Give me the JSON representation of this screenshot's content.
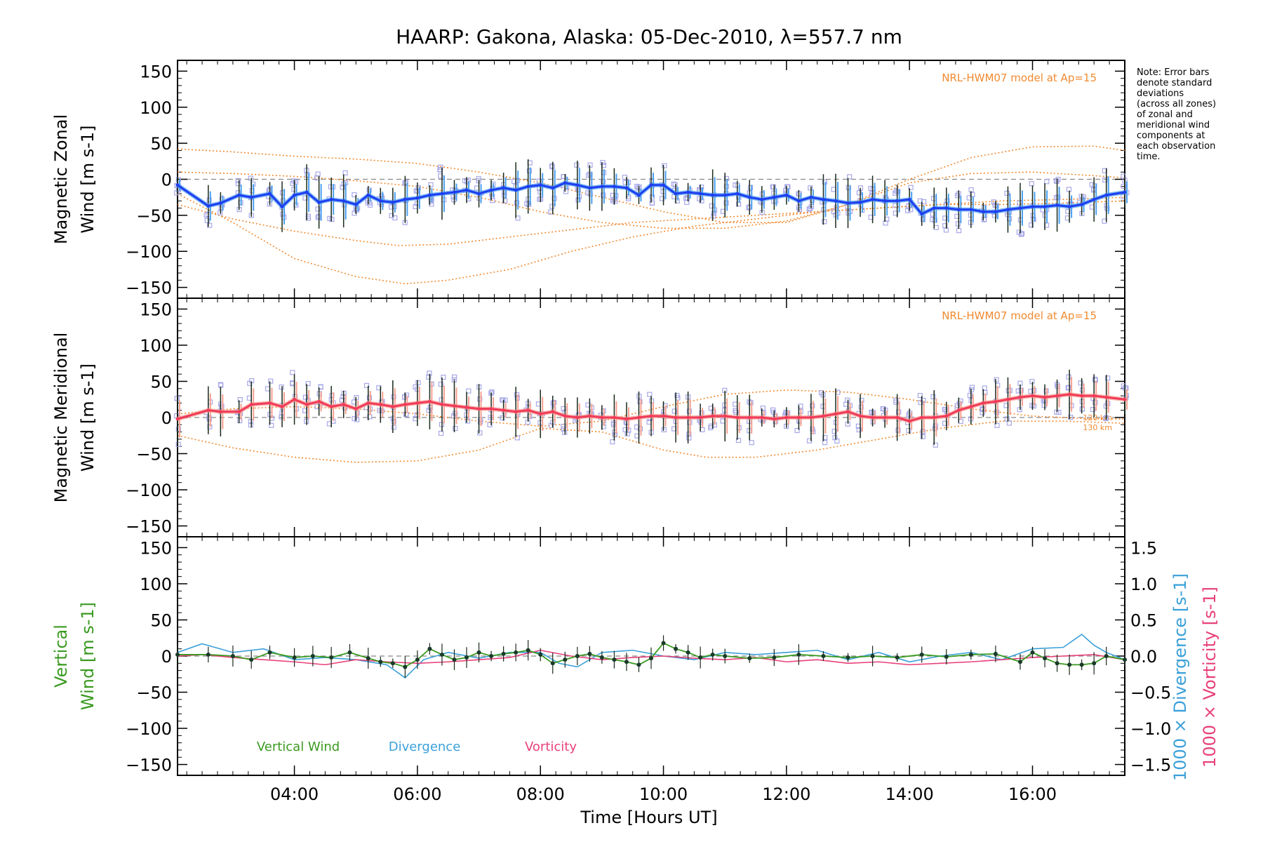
{
  "title": "HAARP: Gakona,  Alaska: 05-Dec-2010, λ=557.7 nm",
  "note_lines": [
    "Note: Error bars",
    "denote standard",
    "deviations",
    "(across all zones)",
    "of zonal and",
    "meridional wind",
    "components at",
    "each observation",
    "time."
  ],
  "colors": {
    "zonal": "#1f3df0",
    "zonal_light": "#4aa0f0",
    "meridional": "#f03a5a",
    "meridional_light": "#f7a090",
    "model": "#f08a30",
    "scatter": "#a8a8e8",
    "vertical": "#3a9a20",
    "divergence": "#3aa0d8",
    "vorticity": "#e8407a",
    "errorbar": "#1a2a1a"
  },
  "chart_data": [
    {
      "type": "line",
      "panel": "zonal",
      "ylabel_lines": [
        "Magnetic Zonal",
        "Wind [m s-1]"
      ],
      "ylim": [
        -165,
        165
      ],
      "yticks": [
        150,
        100,
        50,
        0,
        -50,
        -100,
        -150
      ],
      "xlim": [
        2.1,
        17.5
      ],
      "model_label": "NRL-HWM07 model at Ap=15",
      "series": [
        {
          "role": "wind",
          "x": [
            2.1,
            2.6,
            2.8,
            3.1,
            3.3,
            3.6,
            3.8,
            4.0,
            4.2,
            4.4,
            4.6,
            4.8,
            5.0,
            5.2,
            5.4,
            5.6,
            5.8,
            6.0,
            6.2,
            6.4,
            6.6,
            6.8,
            7.0,
            7.2,
            7.4,
            7.6,
            7.8,
            8.0,
            8.2,
            8.4,
            8.6,
            8.8,
            9.0,
            9.2,
            9.4,
            9.6,
            9.8,
            10.0,
            10.2,
            10.4,
            10.6,
            10.8,
            11.0,
            11.2,
            11.4,
            11.6,
            11.8,
            12.0,
            12.2,
            12.4,
            12.6,
            12.8,
            13.0,
            13.2,
            13.4,
            13.6,
            13.8,
            14.0,
            14.2,
            14.4,
            14.6,
            14.8,
            15.0,
            15.2,
            15.4,
            15.6,
            15.8,
            16.0,
            16.2,
            16.4,
            16.6,
            16.8,
            17.0,
            17.2,
            17.5
          ],
          "y": [
            -8,
            -37,
            -33,
            -22,
            -25,
            -20,
            -38,
            -22,
            -18,
            -32,
            -28,
            -30,
            -35,
            -22,
            -30,
            -32,
            -28,
            -26,
            -22,
            -20,
            -18,
            -15,
            -20,
            -15,
            -12,
            -15,
            -10,
            -8,
            -12,
            -5,
            -8,
            -12,
            -10,
            -10,
            -12,
            -22,
            -8,
            -8,
            -20,
            -18,
            -20,
            -22,
            -22,
            -20,
            -25,
            -28,
            -25,
            -22,
            -30,
            -25,
            -28,
            -30,
            -33,
            -32,
            -28,
            -30,
            -30,
            -28,
            -48,
            -40,
            -40,
            -42,
            -42,
            -45,
            -45,
            -42,
            -40,
            -38,
            -38,
            -36,
            -38,
            -35,
            -28,
            -22,
            -18
          ]
        },
        {
          "role": "model",
          "x": [
            2.1,
            3.0,
            4.0,
            5.0,
            5.7,
            6.5,
            7.5,
            8.5,
            9.5,
            10.5,
            11.5,
            12.5,
            13.5,
            14.5,
            15.5,
            16.5,
            17.5
          ],
          "y": [
            -35,
            -55,
            -72,
            -85,
            -92,
            -90,
            -80,
            -70,
            -60,
            -55,
            -50,
            -45,
            -40,
            -35,
            -30,
            -28,
            -25
          ]
        },
        {
          "role": "model",
          "x": [
            2.1,
            3.0,
            4.0,
            5.0,
            5.8,
            6.5,
            7.5,
            8.5,
            9.5,
            10.5,
            11.5,
            12.5,
            13.5,
            14.5,
            15.5,
            16.5,
            17.5
          ],
          "y": [
            -20,
            -60,
            -110,
            -135,
            -145,
            -140,
            -125,
            -100,
            -80,
            -65,
            -55,
            -45,
            -40,
            -35,
            -35,
            -33,
            -30
          ]
        },
        {
          "role": "model",
          "x": [
            2.1,
            3.0,
            4.0,
            5.0,
            6.0,
            7.0,
            8.0,
            9.0,
            10.0,
            11.0,
            12.0,
            13.0,
            14.0,
            15.0,
            16.0,
            17.0,
            17.5
          ],
          "y": [
            42,
            38,
            32,
            28,
            22,
            10,
            -5,
            -25,
            -45,
            -60,
            -60,
            -35,
            0,
            30,
            45,
            46,
            40
          ]
        },
        {
          "role": "model",
          "x": [
            2.1,
            3.0,
            4.0,
            5.0,
            6.0,
            7.0,
            8.0,
            9.0,
            10.0,
            11.0,
            12.0,
            13.0,
            14.0,
            15.0,
            16.0,
            17.0,
            17.5
          ],
          "y": [
            10,
            8,
            4,
            -2,
            -10,
            -25,
            -45,
            -60,
            -68,
            -68,
            -58,
            -35,
            -5,
            8,
            10,
            5,
            2
          ]
        }
      ]
    },
    {
      "type": "line",
      "panel": "meridional",
      "ylabel_lines": [
        "Magnetic Meridional",
        "Wind [m s-1]"
      ],
      "ylim": [
        -165,
        165
      ],
      "yticks": [
        150,
        100,
        50,
        0,
        -50,
        -100,
        -150
      ],
      "xlim": [
        2.1,
        17.5
      ],
      "model_label": "NRL-HWM07 model at Ap=15",
      "model_alt_labels": [
        "120 km",
        "130 km"
      ],
      "series": [
        {
          "role": "wind",
          "x": [
            2.1,
            2.6,
            2.8,
            3.1,
            3.3,
            3.6,
            3.8,
            4.0,
            4.2,
            4.4,
            4.6,
            4.8,
            5.0,
            5.2,
            5.4,
            5.6,
            5.8,
            6.0,
            6.2,
            6.4,
            6.6,
            6.8,
            7.0,
            7.2,
            7.4,
            7.6,
            7.8,
            8.0,
            8.2,
            8.4,
            8.6,
            8.8,
            9.0,
            9.2,
            9.4,
            9.6,
            9.8,
            10.0,
            10.2,
            10.4,
            10.6,
            10.8,
            11.0,
            11.2,
            11.4,
            11.6,
            11.8,
            12.0,
            12.2,
            12.4,
            12.6,
            12.8,
            13.0,
            13.2,
            13.4,
            13.6,
            13.8,
            14.0,
            14.2,
            14.4,
            14.6,
            14.8,
            15.0,
            15.2,
            15.4,
            15.6,
            15.8,
            16.0,
            16.2,
            16.4,
            16.6,
            16.8,
            17.0,
            17.2,
            17.5
          ],
          "y": [
            -2,
            10,
            8,
            8,
            18,
            20,
            15,
            25,
            18,
            22,
            15,
            18,
            12,
            20,
            18,
            15,
            18,
            20,
            22,
            18,
            16,
            14,
            12,
            12,
            10,
            8,
            10,
            5,
            8,
            2,
            0,
            2,
            0,
            0,
            -2,
            0,
            2,
            2,
            0,
            0,
            0,
            2,
            2,
            0,
            0,
            0,
            -2,
            0,
            0,
            0,
            2,
            5,
            8,
            2,
            0,
            0,
            0,
            -5,
            0,
            0,
            2,
            10,
            15,
            20,
            22,
            25,
            28,
            30,
            28,
            30,
            32,
            30,
            30,
            28,
            25
          ]
        },
        {
          "role": "model",
          "x": [
            2.1,
            3.0,
            4.0,
            5.0,
            6.0,
            7.0,
            8.0,
            9.0,
            10.0,
            10.7,
            11.5,
            12.5,
            13.5,
            14.5,
            15.5,
            16.5,
            17.5
          ],
          "y": [
            -25,
            -42,
            -55,
            -62,
            -60,
            -45,
            -15,
            -20,
            -45,
            -55,
            -55,
            -45,
            -30,
            -15,
            -5,
            -5,
            -8
          ]
        },
        {
          "role": "model",
          "x": [
            2.1,
            3.0,
            4.0,
            5.0,
            6.0,
            7.0,
            8.0,
            9.0,
            10.0,
            11.0,
            12.0,
            13.0,
            14.0,
            15.0,
            16.0,
            17.0,
            17.5
          ],
          "y": [
            5,
            12,
            15,
            12,
            5,
            -5,
            -12,
            -5,
            15,
            32,
            38,
            35,
            25,
            12,
            2,
            -2,
            -2
          ]
        }
      ]
    },
    {
      "type": "line",
      "panel": "vertical",
      "ylabel_lines": [
        "Vertical",
        "Wind [m s-1]"
      ],
      "y2label_lines": [
        "1000 × Divergence [s-1]",
        "1000 × Vorticity [s-1]"
      ],
      "ylim": [
        -165,
        165
      ],
      "yticks": [
        150,
        100,
        50,
        0,
        -50,
        -100,
        -150
      ],
      "y2lim": [
        -1.65,
        1.65
      ],
      "y2ticks": [
        "1.5",
        "1.0",
        "0.5",
        "0.0",
        "−0.5",
        "−1.0",
        "−1.5"
      ],
      "xlim": [
        2.1,
        17.5
      ],
      "xticks": [
        "04:00",
        "06:00",
        "08:00",
        "10:00",
        "12:00",
        "14:00",
        "16:00"
      ],
      "xlabel": "Time [Hours UT]",
      "legend": [
        "Vertical Wind",
        "Divergence",
        "Vorticity"
      ],
      "series": [
        {
          "name": "Vertical Wind",
          "x": [
            2.1,
            2.6,
            3.0,
            3.3,
            3.6,
            4.0,
            4.3,
            4.6,
            4.9,
            5.2,
            5.4,
            5.6,
            5.8,
            6.0,
            6.2,
            6.4,
            6.6,
            6.8,
            7.0,
            7.2,
            7.4,
            7.6,
            7.8,
            8.0,
            8.2,
            8.4,
            8.6,
            8.8,
            9.0,
            9.2,
            9.4,
            9.6,
            9.8,
            10.0,
            10.2,
            10.4,
            10.6,
            10.8,
            11.0,
            11.4,
            11.8,
            12.2,
            12.6,
            13.0,
            13.4,
            13.8,
            14.2,
            14.6,
            15.0,
            15.4,
            15.8,
            16.0,
            16.2,
            16.4,
            16.6,
            16.8,
            17.0,
            17.2,
            17.5
          ],
          "y": [
            2,
            2,
            0,
            -5,
            5,
            -2,
            0,
            -2,
            5,
            -3,
            -8,
            -10,
            -15,
            -5,
            10,
            2,
            -5,
            -2,
            5,
            0,
            3,
            5,
            8,
            2,
            -10,
            -5,
            0,
            3,
            -2,
            -5,
            -8,
            -12,
            -3,
            18,
            10,
            5,
            -2,
            2,
            0,
            -3,
            -2,
            2,
            0,
            -2,
            0,
            -2,
            2,
            -1,
            2,
            3,
            -8,
            5,
            -3,
            -10,
            -12,
            -12,
            -10,
            0,
            -5
          ]
        },
        {
          "name": "Divergence",
          "x": [
            2.1,
            2.5,
            3.0,
            3.5,
            4.0,
            4.5,
            5.0,
            5.5,
            5.8,
            6.1,
            6.5,
            7.0,
            7.5,
            8.0,
            8.3,
            8.6,
            9.0,
            9.5,
            10.0,
            10.5,
            11.0,
            11.5,
            12.0,
            12.5,
            13.0,
            13.5,
            14.0,
            14.5,
            15.0,
            15.5,
            16.0,
            16.5,
            16.8,
            17.0,
            17.2,
            17.5
          ],
          "y": [
            0.05,
            0.17,
            0.05,
            0.1,
            -0.05,
            -0.02,
            -0.05,
            -0.12,
            -0.3,
            -0.05,
            0.05,
            -0.03,
            0.05,
            0.05,
            -0.1,
            -0.15,
            0.05,
            0.08,
            0.0,
            -0.05,
            0.05,
            0.02,
            0.05,
            0.08,
            -0.05,
            0.05,
            -0.08,
            0.0,
            0.05,
            -0.05,
            0.1,
            0.12,
            0.3,
            0.15,
            0.05,
            -0.05
          ]
        },
        {
          "name": "Vorticity",
          "x": [
            2.1,
            2.5,
            3.0,
            3.5,
            4.0,
            4.5,
            5.0,
            5.5,
            6.0,
            6.5,
            7.0,
            7.5,
            8.0,
            8.5,
            9.0,
            9.5,
            10.0,
            10.5,
            11.0,
            11.5,
            12.0,
            12.5,
            13.0,
            13.5,
            14.0,
            14.5,
            15.0,
            15.5,
            16.0,
            16.5,
            17.0,
            17.5
          ],
          "y": [
            0.0,
            0.02,
            -0.02,
            -0.05,
            -0.08,
            -0.12,
            -0.05,
            -0.08,
            -0.1,
            -0.08,
            -0.05,
            -0.02,
            0.08,
            0.0,
            -0.05,
            -0.02,
            0.0,
            -0.03,
            -0.05,
            -0.02,
            -0.08,
            -0.05,
            -0.1,
            -0.08,
            -0.12,
            -0.1,
            -0.08,
            -0.05,
            -0.02,
            0.0,
            0.02,
            -0.05
          ]
        }
      ]
    }
  ]
}
